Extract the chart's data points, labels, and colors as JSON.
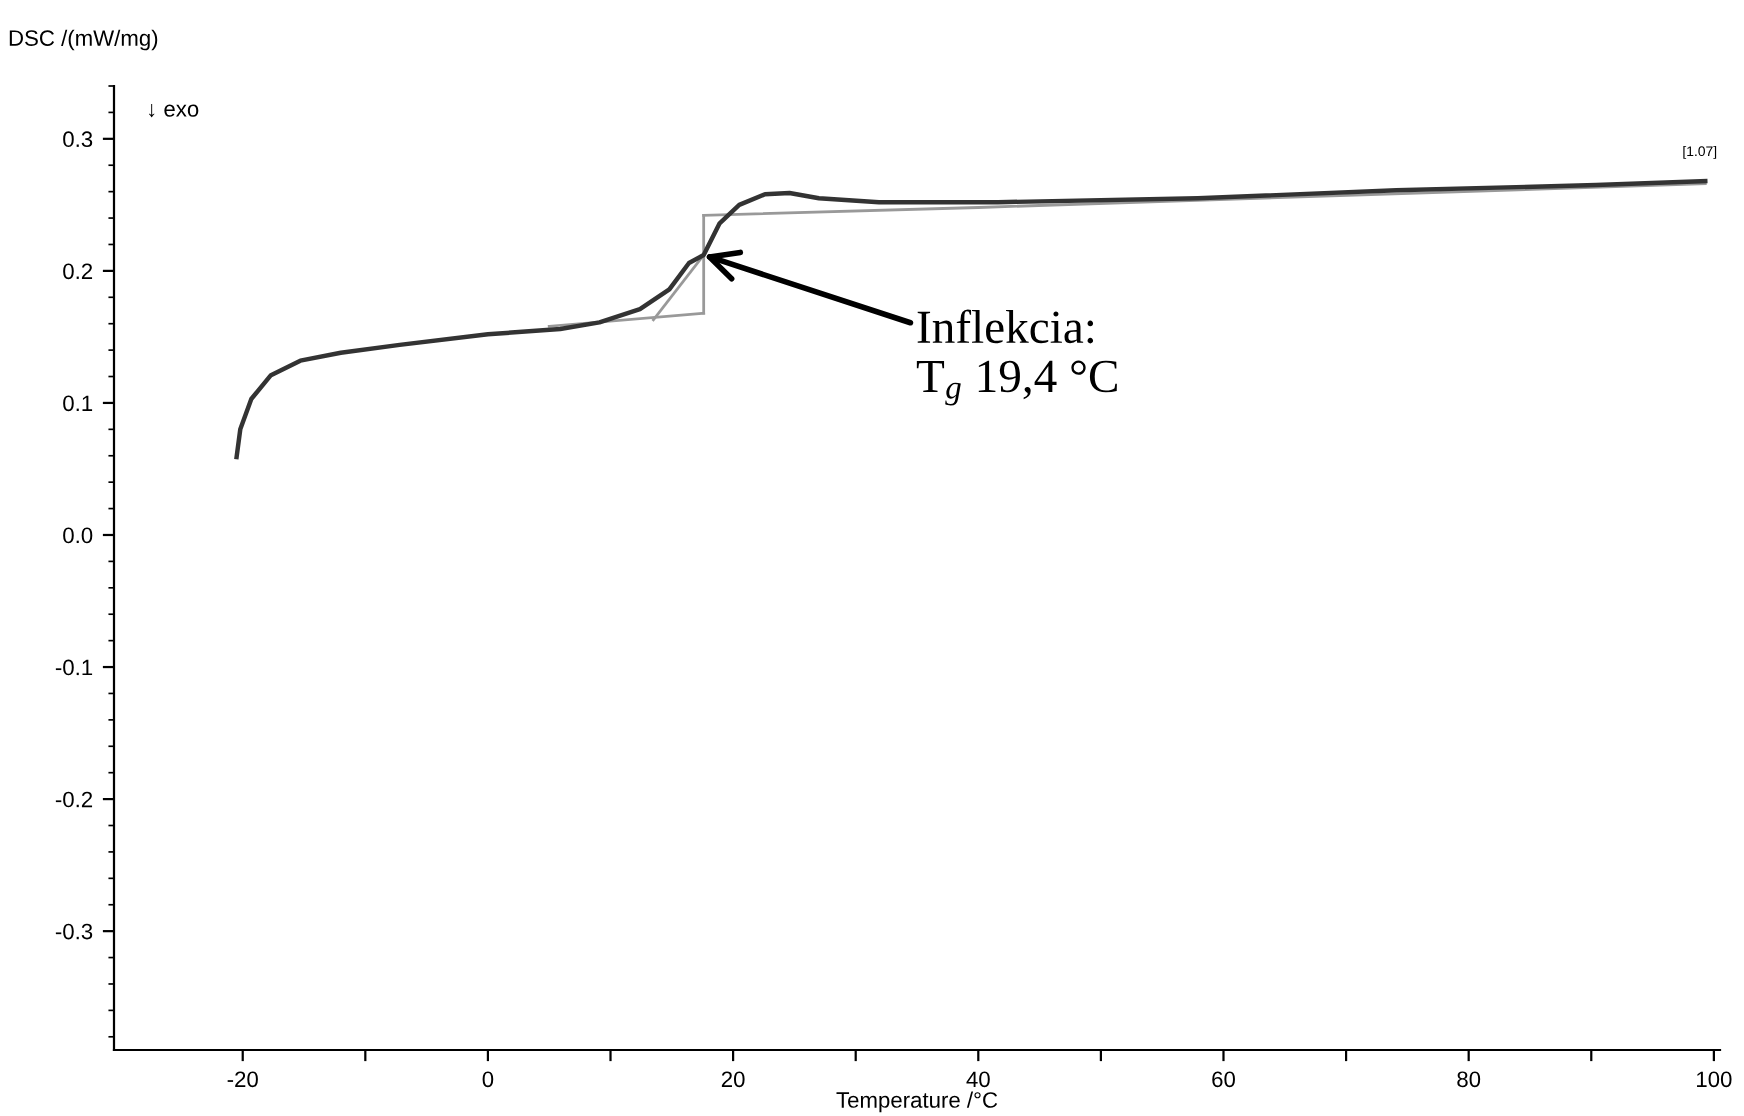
{
  "chart_data": {
    "type": "line",
    "xlabel": "Temperature /°C",
    "ylabel": "DSC /(mW/mg)",
    "xlim": [
      -30.5,
      100.5
    ],
    "ylim": [
      -0.39,
      0.34
    ],
    "xticks": [
      -20,
      {
        "value": -10,
        "label": null
      },
      0,
      {
        "value": 10,
        "label": null
      },
      20,
      {
        "value": 30,
        "label": null
      },
      40,
      {
        "value": 50,
        "label": null
      },
      60,
      {
        "value": 70,
        "label": null
      },
      80,
      {
        "value": 90,
        "label": null
      },
      100
    ],
    "yticks": [
      -0.3,
      -0.2,
      -0.1,
      {
        "value": 0,
        "label": "0.0"
      },
      0.1,
      0.2,
      0.3
    ],
    "grid": false,
    "legend": false,
    "marker": "none",
    "line_style": "solid",
    "series": [
      {
        "color": "#999999",
        "x": [
          5.0,
          17.6
        ],
        "values": [
          0.158,
          0.168
        ]
      },
      {
        "color": "#999999",
        "x": [
          17.6,
          17.6
        ],
        "values": [
          0.168,
          0.242
        ]
      },
      {
        "color": "#999999",
        "x": [
          17.6,
          40.0,
          99.3
        ],
        "values": [
          0.242,
          0.248,
          0.266
        ]
      },
      {
        "color": "#999999",
        "x": [
          13.5,
          17.6
        ],
        "values": [
          0.163,
          0.212
        ]
      },
      {
        "color": "#333333",
        "x": [
          -20.5,
          -20.2,
          -19.3,
          -17.7,
          -15.3,
          -12.0,
          -7.2,
          0,
          5.9,
          9.1,
          12.4,
          14.8,
          16.4,
          17.6,
          18.9,
          20.5,
          22.6,
          24.6,
          27.0,
          31.9,
          41.6,
          57.9,
          74.1,
          90.4,
          99.3
        ],
        "values": [
          0.059,
          0.08,
          0.103,
          0.121,
          0.132,
          0.138,
          0.144,
          0.152,
          0.156,
          0.161,
          0.171,
          0.186,
          0.206,
          0.212,
          0.236,
          0.25,
          0.258,
          0.259,
          0.255,
          0.252,
          0.252,
          0.255,
          0.261,
          0.265,
          0.268
        ]
      }
    ],
    "annotations": [
      "↓ exo",
      {
        "text": "[1.07]",
        "x": 99.3,
        "y": 0.268
      },
      {
        "text": "Inflekcia:\nT$_{g}$ 19,4 °C",
        "x": 17.6,
        "y": 0.212
      }
    ]
  }
}
